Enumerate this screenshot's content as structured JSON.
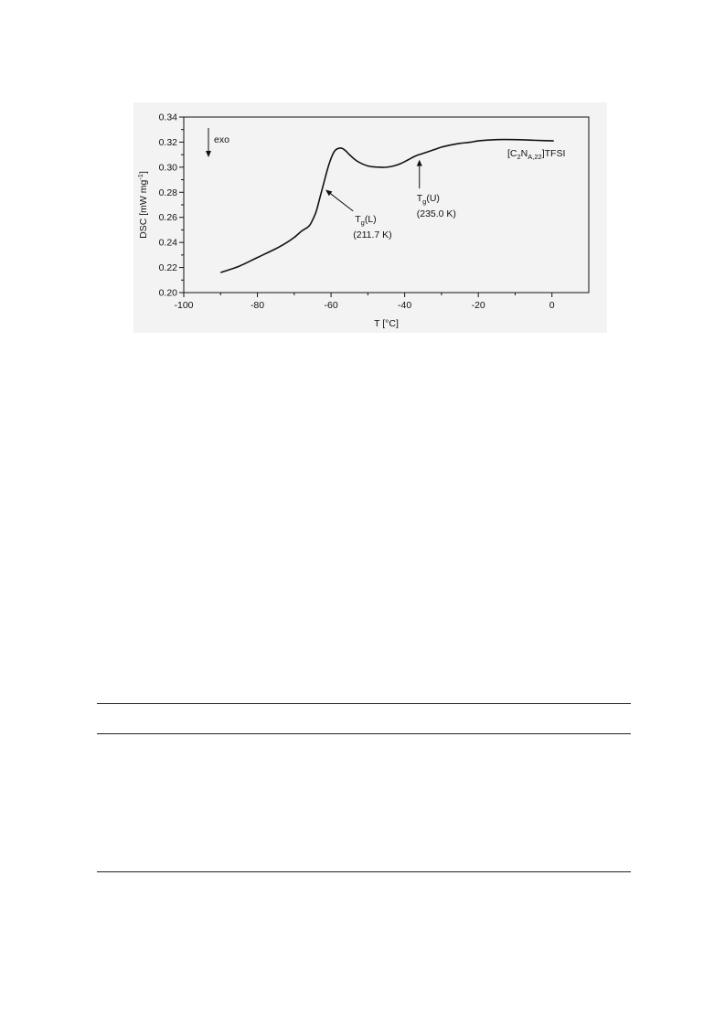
{
  "chart_data": {
    "type": "line",
    "xlabel": "T [°C]",
    "ylabel_main": "DSC [mW mg",
    "ylabel_sup": "-1",
    "ylabel_close": "]",
    "xlim": [
      -100,
      10
    ],
    "ylim": [
      0.2,
      0.34
    ],
    "xticks": [
      -100,
      -80,
      -60,
      -40,
      -20,
      0
    ],
    "yticks": [
      0.2,
      0.22,
      0.24,
      0.26,
      0.28,
      0.3,
      0.32,
      0.34
    ],
    "x_minor_step": 10,
    "y_minor_step": 0.01,
    "grid": false,
    "series": [
      {
        "x": [
          -90,
          -85,
          -80,
          -75,
          -72,
          -70,
          -68,
          -66,
          -65,
          -64,
          -63,
          -62,
          -61,
          -60,
          -59,
          -58,
          -57,
          -56,
          -55,
          -53,
          -50,
          -47,
          -45,
          -43,
          -41,
          -39,
          -37,
          -35,
          -32,
          -30,
          -27,
          -25,
          -22,
          -20,
          -15,
          -10,
          -5,
          0.5
        ],
        "y": [
          0.216,
          0.221,
          0.228,
          0.235,
          0.24,
          0.244,
          0.249,
          0.253,
          0.258,
          0.265,
          0.276,
          0.287,
          0.298,
          0.307,
          0.313,
          0.315,
          0.315,
          0.313,
          0.31,
          0.305,
          0.301,
          0.3,
          0.3,
          0.301,
          0.303,
          0.306,
          0.309,
          0.311,
          0.314,
          0.316,
          0.318,
          0.319,
          0.32,
          0.321,
          0.322,
          0.322,
          0.3215,
          0.321
        ]
      }
    ],
    "annotations": [
      {
        "id": "tg-lower",
        "label_main": "T",
        "label_sub": "g",
        "label_rest": "(L)",
        "value_label": "(211.7 K)",
        "arrow_to": [
          -61.5,
          0.282
        ],
        "arrow_from": [
          -54,
          0.265
        ]
      },
      {
        "id": "tg-upper",
        "label_main": "T",
        "label_sub": "g",
        "label_rest": "(U)",
        "value_label": "(235.0 K)",
        "arrow_to": [
          -36,
          0.306
        ],
        "arrow_from": [
          -36,
          0.283
        ]
      }
    ],
    "exo_label": "exo",
    "compound_label": {
      "open": "[C",
      "sub1": "2",
      "mid": "N",
      "sub2": "A,22",
      "close": "]TFSI"
    }
  }
}
